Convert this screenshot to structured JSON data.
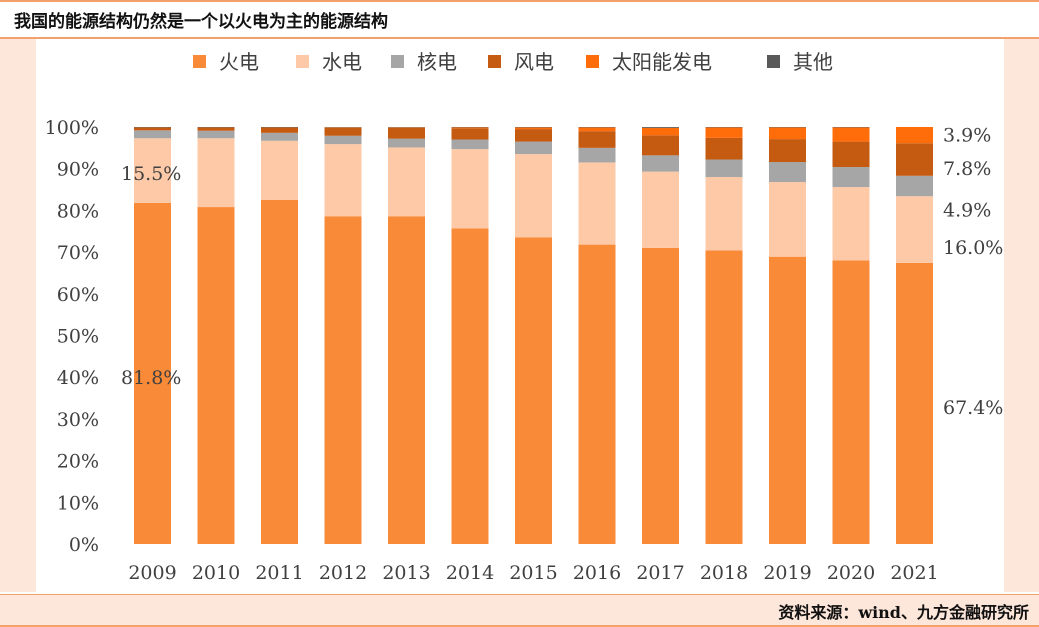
{
  "header": {
    "title": "我国的能源结构仍然是一个以火电为主的能源结构"
  },
  "footer": {
    "source": "资料来源：wind、九方金融研究所"
  },
  "colors": {
    "thermal": "#f98a38",
    "hydro": "#fdc9a7",
    "nuclear": "#a6a6a6",
    "wind": "#c55a11",
    "solar": "#ff6c0a",
    "other": "#595959",
    "frame_bg": "#fde6da",
    "accent_line": "#f3a06a"
  },
  "chart_data": {
    "type": "bar",
    "stacked": true,
    "percent_stacked": true,
    "title": "",
    "xlabel": "",
    "ylabel": "",
    "ylim": [
      0,
      100
    ],
    "y_ticks": [
      "0%",
      "10%",
      "20%",
      "30%",
      "40%",
      "50%",
      "60%",
      "70%",
      "80%",
      "90%",
      "100%"
    ],
    "grid": false,
    "legend_position": "top",
    "categories": [
      "2009",
      "2010",
      "2011",
      "2012",
      "2013",
      "2014",
      "2015",
      "2016",
      "2017",
      "2018",
      "2019",
      "2020",
      "2021"
    ],
    "series": [
      {
        "name": "火电",
        "color_key": "thermal",
        "values": [
          81.8,
          80.8,
          82.5,
          78.6,
          78.6,
          75.7,
          73.5,
          71.8,
          71.0,
          70.4,
          68.9,
          68.0,
          67.4
        ]
      },
      {
        "name": "水电",
        "color_key": "hydro",
        "values": [
          15.5,
          16.5,
          14.2,
          17.3,
          16.5,
          19.0,
          20.0,
          19.7,
          18.3,
          17.6,
          17.9,
          17.6,
          16.0
        ]
      },
      {
        "name": "核电",
        "color_key": "nuclear",
        "values": [
          1.9,
          1.8,
          1.9,
          2.0,
          2.1,
          2.3,
          3.0,
          3.5,
          3.9,
          4.2,
          4.8,
          4.8,
          4.9
        ]
      },
      {
        "name": "风电",
        "color_key": "wind",
        "values": [
          0.7,
          0.8,
          1.3,
          1.9,
          2.6,
          2.7,
          3.0,
          4.0,
          4.8,
          5.2,
          5.5,
          6.1,
          7.8
        ]
      },
      {
        "name": "太阳能发电",
        "color_key": "solar",
        "values": [
          0.0,
          0.0,
          0.0,
          0.1,
          0.1,
          0.2,
          0.4,
          0.9,
          1.8,
          2.5,
          2.8,
          3.4,
          3.9
        ]
      },
      {
        "name": "其他",
        "color_key": "other",
        "values": [
          0.1,
          0.1,
          0.1,
          0.1,
          0.1,
          0.1,
          0.1,
          0.1,
          0.2,
          0.1,
          0.1,
          0.1,
          0.0
        ]
      }
    ],
    "annotations": [
      {
        "text": "81.8%",
        "category": "2009",
        "y": 40
      },
      {
        "text": "15.5%",
        "category": "2009",
        "y": 89
      },
      {
        "text": "3.9%",
        "category": "2021",
        "y": 98.2
      },
      {
        "text": "7.8%",
        "category": "2021",
        "y": 90.2
      },
      {
        "text": "4.9%",
        "category": "2021",
        "y": 80.2
      },
      {
        "text": "16.0%",
        "category": "2021",
        "y": 71.2
      },
      {
        "text": "67.4%",
        "category": "2021",
        "y": 32.8
      }
    ]
  }
}
